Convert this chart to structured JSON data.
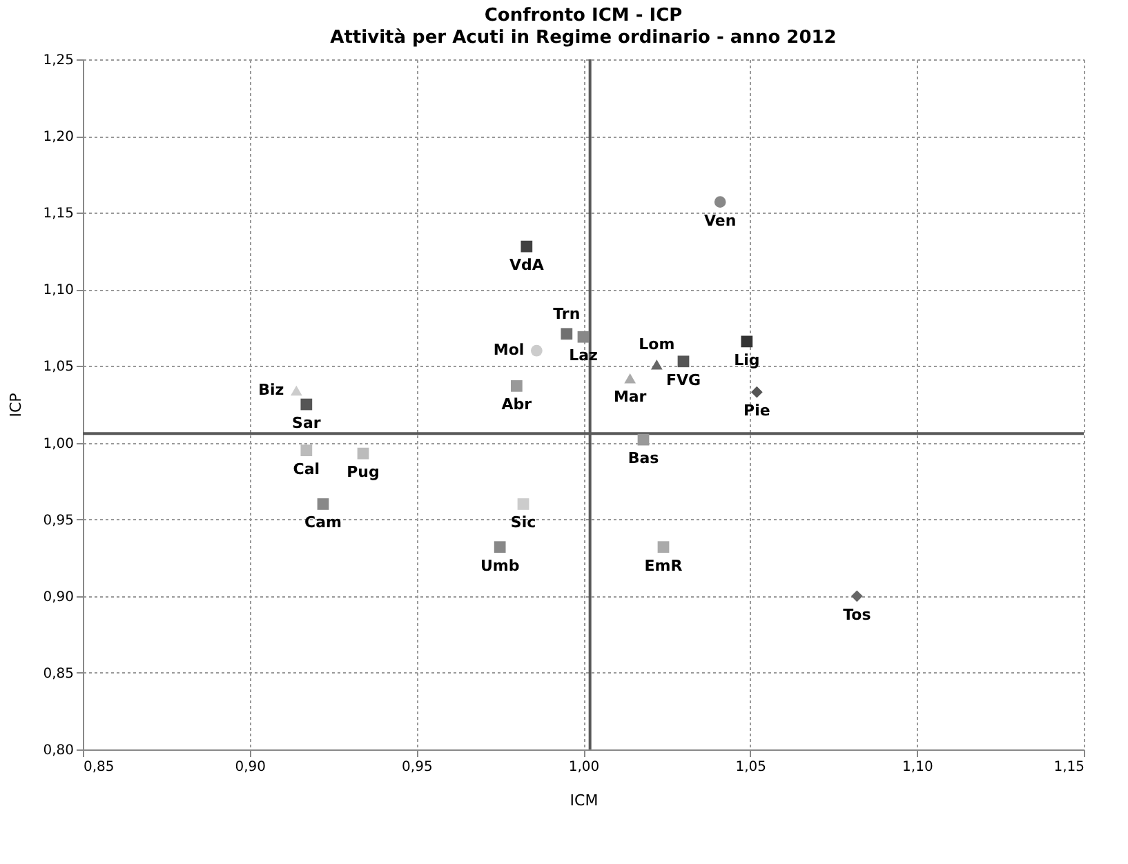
{
  "chart_data": {
    "type": "scatter",
    "title": "Confronto ICM - ICP",
    "subtitle": "Attività per Acuti in Regime ordinario - anno 2012",
    "xlabel": "ICM",
    "ylabel": "ICP",
    "xlim": [
      0.85,
      1.15
    ],
    "xticks": [
      {
        "value": 0.85,
        "label": "0,85"
      },
      {
        "value": 0.9,
        "label": "0,90"
      },
      {
        "value": 0.95,
        "label": "0,95"
      },
      {
        "value": 1.0,
        "label": "1,00"
      },
      {
        "value": 1.05,
        "label": "1,05"
      },
      {
        "value": 1.1,
        "label": "1,10"
      },
      {
        "value": 1.15,
        "label": "1,15"
      }
    ],
    "ylim": [
      0.8,
      1.25
    ],
    "yticks": [
      {
        "value": 0.8,
        "label": "0,80"
      },
      {
        "value": 0.85,
        "label": "0,85"
      },
      {
        "value": 0.9,
        "label": "0,90"
      },
      {
        "value": 0.95,
        "label": "0,95"
      },
      {
        "value": 1.0,
        "label": "1,00"
      },
      {
        "value": 1.05,
        "label": "1,05"
      },
      {
        "value": 1.1,
        "label": "1,10"
      },
      {
        "value": 1.15,
        "label": "1,15"
      },
      {
        "value": 1.2,
        "label": "1,20"
      },
      {
        "value": 1.25,
        "label": "1,25"
      }
    ],
    "grid": true,
    "ref_lines": [
      {
        "axis": "x",
        "value": 1.002,
        "color": "#595959"
      },
      {
        "axis": "y",
        "value": 1.006,
        "color": "#595959"
      }
    ],
    "series": [
      {
        "name": "VdA",
        "color": "#404040",
        "marker": "square",
        "x": [
          0.983
        ],
        "values": [
          1.128
        ]
      },
      {
        "name": "Trn",
        "color": "#707070",
        "marker": "square",
        "x": [
          0.995
        ],
        "values": [
          1.071
        ]
      },
      {
        "name": "Laz",
        "color": "#888888",
        "marker": "square",
        "x": [
          1.0
        ],
        "values": [
          1.069
        ]
      },
      {
        "name": "Mol",
        "color": "#cccccc",
        "marker": "circle",
        "x": [
          0.986
        ],
        "values": [
          1.06
        ]
      },
      {
        "name": "Abr",
        "color": "#999999",
        "marker": "square",
        "x": [
          0.98
        ],
        "values": [
          1.037
        ]
      },
      {
        "name": "Sar",
        "color": "#555555",
        "marker": "square",
        "x": [
          0.917
        ],
        "values": [
          1.025
        ]
      },
      {
        "name": "Biz",
        "color": "#cccccc",
        "marker": "triangle",
        "x": [
          0.914
        ],
        "values": [
          1.034
        ]
      },
      {
        "name": "Cal",
        "color": "#bbbbbb",
        "marker": "square",
        "x": [
          0.917
        ],
        "values": [
          0.995
        ]
      },
      {
        "name": "Pug",
        "color": "#bbbbbb",
        "marker": "square",
        "x": [
          0.934
        ],
        "values": [
          0.993
        ]
      },
      {
        "name": "Cam",
        "color": "#888888",
        "marker": "square",
        "x": [
          0.922
        ],
        "values": [
          0.96
        ]
      },
      {
        "name": "Sic",
        "color": "#cccccc",
        "marker": "square",
        "x": [
          0.982
        ],
        "values": [
          0.96
        ]
      },
      {
        "name": "Umb",
        "color": "#888888",
        "marker": "square",
        "x": [
          0.975
        ],
        "values": [
          0.932
        ]
      },
      {
        "name": "Mar",
        "color": "#aaaaaa",
        "marker": "triangle",
        "x": [
          1.014
        ],
        "values": [
          1.042
        ]
      },
      {
        "name": "Lom",
        "color": "#666666",
        "marker": "triangle",
        "x": [
          1.022
        ],
        "values": [
          1.051
        ]
      },
      {
        "name": "FVG",
        "color": "#555555",
        "marker": "square",
        "x": [
          1.03
        ],
        "values": [
          1.053
        ]
      },
      {
        "name": "Ven",
        "color": "#888888",
        "marker": "circle",
        "x": [
          1.041
        ],
        "values": [
          1.157
        ]
      },
      {
        "name": "Lig",
        "color": "#333333",
        "marker": "square",
        "x": [
          1.049
        ],
        "values": [
          1.066
        ]
      },
      {
        "name": "Pie",
        "color": "#555555",
        "marker": "diamond",
        "x": [
          1.052
        ],
        "values": [
          1.033
        ]
      },
      {
        "name": "Bas",
        "color": "#999999",
        "marker": "square",
        "x": [
          1.018
        ],
        "values": [
          1.002
        ]
      },
      {
        "name": "EmR",
        "color": "#aaaaaa",
        "marker": "square",
        "x": [
          1.024
        ],
        "values": [
          0.932
        ]
      },
      {
        "name": "Tos",
        "color": "#666666",
        "marker": "diamond",
        "x": [
          1.082
        ],
        "values": [
          0.9
        ]
      }
    ]
  }
}
